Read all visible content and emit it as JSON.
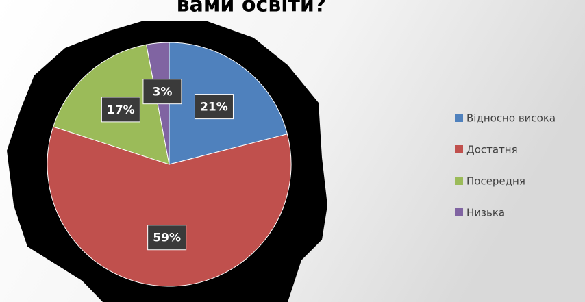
{
  "chart_data": {
    "type": "pie",
    "title": "вами освіти?",
    "categories": [
      "Відносно висока",
      "Достатня",
      "Посередня",
      "Низька"
    ],
    "values": [
      21,
      59,
      17,
      3
    ],
    "value_labels": [
      "21%",
      "59%",
      "17%",
      "3%"
    ],
    "colors": [
      "#4f81bd",
      "#c0504d",
      "#9bbb59",
      "#8064a2"
    ],
    "legend": "right"
  }
}
